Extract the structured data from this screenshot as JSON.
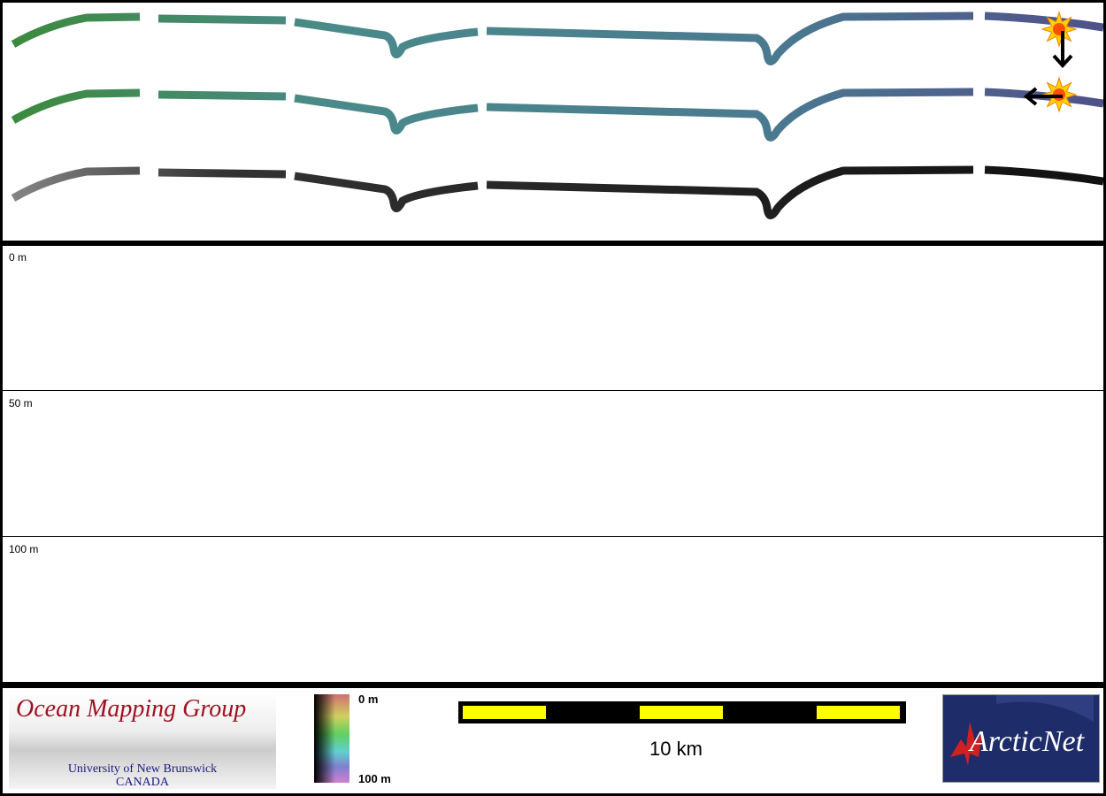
{
  "depth_bands": [
    {
      "label": "0 m"
    },
    {
      "label": "50 m"
    },
    {
      "label": "100 m"
    }
  ],
  "legend": {
    "org_title": "Ocean Mapping Group",
    "org_sub1": "University of New Brunswick",
    "org_sub2": "CANADA",
    "colorbar_top": "0 m",
    "colorbar_bottom": "100 m",
    "scale_label": "10 km",
    "partner_logo": "ArcticNet"
  },
  "icons": [
    "sun-icon",
    "arrow-down-icon",
    "sun-icon",
    "arrow-left-icon"
  ],
  "colors": {
    "track_start": "#3c8a3c",
    "track_mid": "#4a8a8a",
    "track_end": "#50508a",
    "track_gray": "#333333",
    "scale_yellow": "#ffff00",
    "logo_red": "#a01020"
  }
}
